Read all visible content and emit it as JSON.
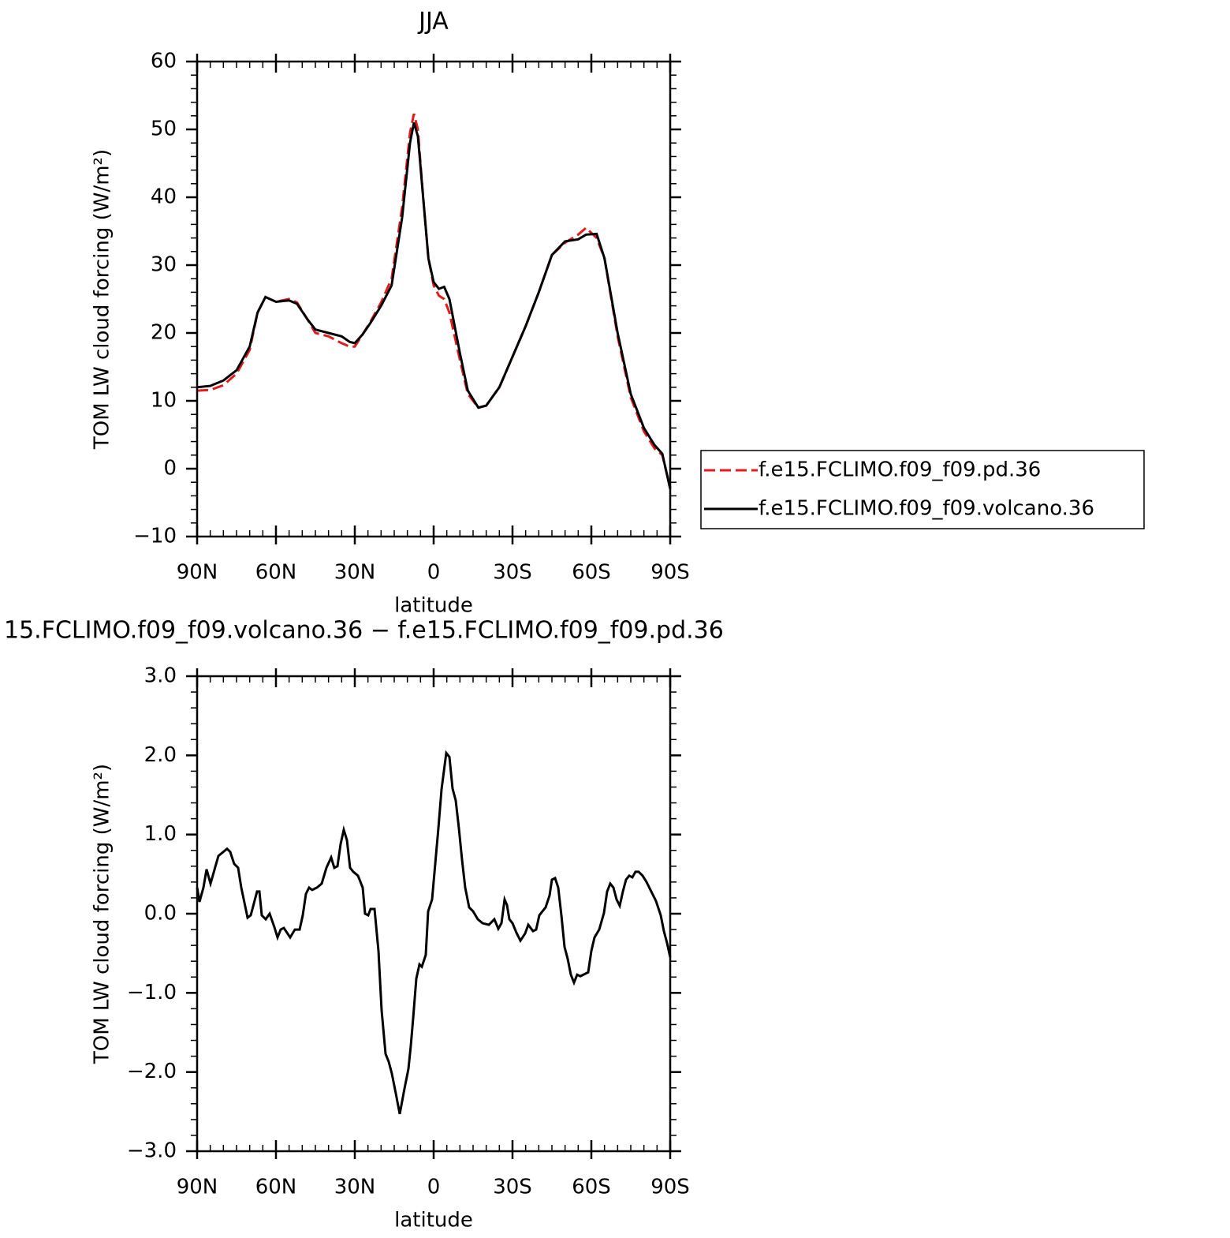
{
  "chart_data": [
    {
      "type": "line",
      "title": "JJA",
      "x_label": "latitude",
      "y_label": "TOM LW cloud forcing (W/m²)",
      "x": [
        90,
        85,
        80,
        75,
        70,
        67,
        64,
        60,
        55,
        52,
        48,
        45,
        40,
        35,
        32,
        30,
        27,
        24,
        20,
        16,
        12,
        9,
        7.5,
        6,
        4,
        2,
        0,
        -2,
        -4,
        -6,
        -8,
        -10,
        -13,
        -17,
        -20,
        -25,
        -30,
        -35,
        -40,
        -45,
        -50,
        -55,
        -58,
        -62,
        -65,
        -70,
        -75,
        -80,
        -84,
        -87,
        -90
      ],
      "series": [
        {
          "name": "f.e15.FCLIMO.f09_f09.pd.36",
          "color": "#e41a1c",
          "line_style": "dashed",
          "values": [
            11.5,
            11.6,
            12.3,
            14,
            17.5,
            23,
            25.3,
            24.6,
            25,
            24.5,
            22,
            20,
            19.5,
            18.5,
            18,
            18,
            19.8,
            21.7,
            24.5,
            28,
            38.5,
            49.5,
            52.3,
            50,
            40,
            31,
            27,
            25.5,
            25,
            23,
            19.5,
            16,
            11,
            9,
            9.3,
            12,
            16.5,
            21,
            26,
            31.5,
            33.3,
            34.5,
            35.5,
            34,
            31,
            19.5,
            10.5,
            5.5,
            3,
            2,
            -2.8
          ]
        },
        {
          "name": "f.e15.FCLIMO.f09_f09.volcano.36",
          "color": "#000000",
          "line_style": "solid",
          "values": [
            12,
            12.2,
            13,
            14.5,
            18,
            23,
            25.3,
            24.6,
            24.8,
            24.3,
            22,
            20.5,
            20,
            19.5,
            18.7,
            18.5,
            19.8,
            21.5,
            24,
            27,
            37,
            48,
            51,
            49,
            40,
            31,
            27.5,
            26.5,
            26.8,
            25,
            21,
            17,
            11.5,
            9,
            9.3,
            12,
            16.5,
            21,
            26,
            31.5,
            33.5,
            33.8,
            34.5,
            34.6,
            31,
            20,
            11,
            6,
            3.5,
            2.2,
            -3
          ]
        }
      ],
      "xlim": [
        90,
        -90
      ],
      "xticks": [
        {
          "value": 90,
          "label": "90N"
        },
        {
          "value": 60,
          "label": "60N"
        },
        {
          "value": 30,
          "label": "30N"
        },
        0,
        {
          "value": -30,
          "label": "30S"
        },
        {
          "value": -60,
          "label": "60S"
        },
        {
          "value": -90,
          "label": "90S"
        }
      ],
      "ylim": [
        -10,
        60
      ],
      "yticks": [
        {
          "value": -10,
          "label": "−10"
        },
        0,
        10,
        20,
        30,
        40,
        50,
        60
      ],
      "legend": "right"
    },
    {
      "type": "line",
      "title": "15.FCLIMO.f09_f09.volcano.36 − f.e15.FCLIMO.f09_f09.pd.36",
      "x_label": "latitude",
      "y_label": "TOM LW cloud forcing (W/m²)",
      "x": [
        90,
        89.1,
        87.6,
        86.4,
        84.9,
        81.9,
        78.6,
        77.4,
        75.9,
        74.4,
        73.2,
        70.8,
        69.6,
        68.4,
        67.2,
        66.3,
        65.4,
        63.9,
        62.4,
        60.6,
        59.4,
        58.2,
        57,
        55.8,
        54.6,
        52.8,
        51,
        49.8,
        48.6,
        47.4,
        46.2,
        44.4,
        42.6,
        40.8,
        39,
        37.8,
        36.6,
        35.4,
        34.2,
        33,
        31.8,
        30.6,
        28.8,
        27,
        26.1,
        24.9,
        24,
        22.5,
        21,
        19.8,
        18.3,
        17.1,
        15.9,
        14.4,
        12.9,
        11.1,
        9.6,
        8.7,
        7.8,
        6.6,
        5.4,
        4.5,
        3,
        2.1,
        0.6,
        -0.6,
        -1.8,
        -3,
        -4.8,
        -6,
        -7.2,
        -8.4,
        -9.6,
        -10.8,
        -12,
        -13.5,
        -15,
        -16.8,
        -18.6,
        -21,
        -23.1,
        -24.6,
        -25.8,
        -27,
        -27.9,
        -28.8,
        -30,
        -31.5,
        -33,
        -34.8,
        -36,
        -37.8,
        -39,
        -40.2,
        -41.4,
        -42.6,
        -44.1,
        -45,
        -46.2,
        -47.4,
        -48.6,
        -49.8,
        -51,
        -52.2,
        -53.4,
        -54.6,
        -55.8,
        -57,
        -58.8,
        -60,
        -61.2,
        -63,
        -64.8,
        -66,
        -67.2,
        -68.4,
        -69.6,
        -70.8,
        -72,
        -73.2,
        -74.4,
        -75.6,
        -76.8,
        -78,
        -79.5,
        -81,
        -82.8,
        -84.6,
        -86.4,
        -87.6,
        -88.8,
        -90
      ],
      "values": [
        0.33,
        0.15,
        0.33,
        0.56,
        0.38,
        0.73,
        0.82,
        0.78,
        0.63,
        0.58,
        0.33,
        -0.05,
        -0.02,
        0.13,
        0.28,
        0.28,
        -0.02,
        -0.07,
        0,
        -0.17,
        -0.3,
        -0.2,
        -0.18,
        -0.24,
        -0.3,
        -0.2,
        -0.2,
        -0.02,
        0.25,
        0.33,
        0.3,
        0.33,
        0.38,
        0.58,
        0.71,
        0.58,
        0.6,
        0.88,
        1.06,
        0.93,
        0.58,
        0.53,
        0.48,
        0.33,
        0,
        -0.02,
        0.06,
        0.06,
        -0.47,
        -1.22,
        -1.77,
        -1.87,
        -2.02,
        -2.27,
        -2.53,
        -2.21,
        -1.96,
        -1.67,
        -1.32,
        -0.82,
        -0.64,
        -0.67,
        -0.52,
        0.03,
        0.18,
        0.63,
        1.08,
        1.57,
        2.03,
        1.98,
        1.58,
        1.43,
        1.08,
        0.68,
        0.33,
        0.08,
        0.03,
        -0.07,
        -0.12,
        -0.14,
        -0.07,
        -0.19,
        -0.12,
        0.18,
        0.11,
        -0.07,
        -0.12,
        -0.24,
        -0.34,
        -0.25,
        -0.14,
        -0.22,
        -0.2,
        -0.02,
        0.03,
        0.08,
        0.23,
        0.43,
        0.45,
        0.33,
        -0.02,
        -0.42,
        -0.57,
        -0.77,
        -0.87,
        -0.77,
        -0.79,
        -0.77,
        -0.74,
        -0.47,
        -0.3,
        -0.2,
        0.01,
        0.28,
        0.38,
        0.33,
        0.18,
        0.1,
        0.28,
        0.43,
        0.48,
        0.46,
        0.53,
        0.53,
        0.48,
        0.4,
        0.28,
        0.16,
        -0.02,
        -0.22,
        -0.37,
        -0.55
      ],
      "color": "#000000",
      "xlim": [
        90,
        -90
      ],
      "xticks": [
        {
          "value": 90,
          "label": "90N"
        },
        {
          "value": 60,
          "label": "60N"
        },
        {
          "value": 30,
          "label": "30N"
        },
        0,
        {
          "value": -30,
          "label": "30S"
        },
        {
          "value": -60,
          "label": "60S"
        },
        {
          "value": -90,
          "label": "90S"
        }
      ],
      "ylim": [
        -3,
        3
      ],
      "yticks": [
        {
          "value": -3,
          "label": "−3.0"
        },
        {
          "value": -2,
          "label": "−2.0"
        },
        {
          "value": -1,
          "label": "−1.0"
        },
        {
          "value": 0,
          "label": "0.0"
        },
        {
          "value": 1,
          "label": "1.0"
        },
        {
          "value": 2,
          "label": "2.0"
        },
        {
          "value": 3,
          "label": "3.0"
        }
      ]
    }
  ]
}
